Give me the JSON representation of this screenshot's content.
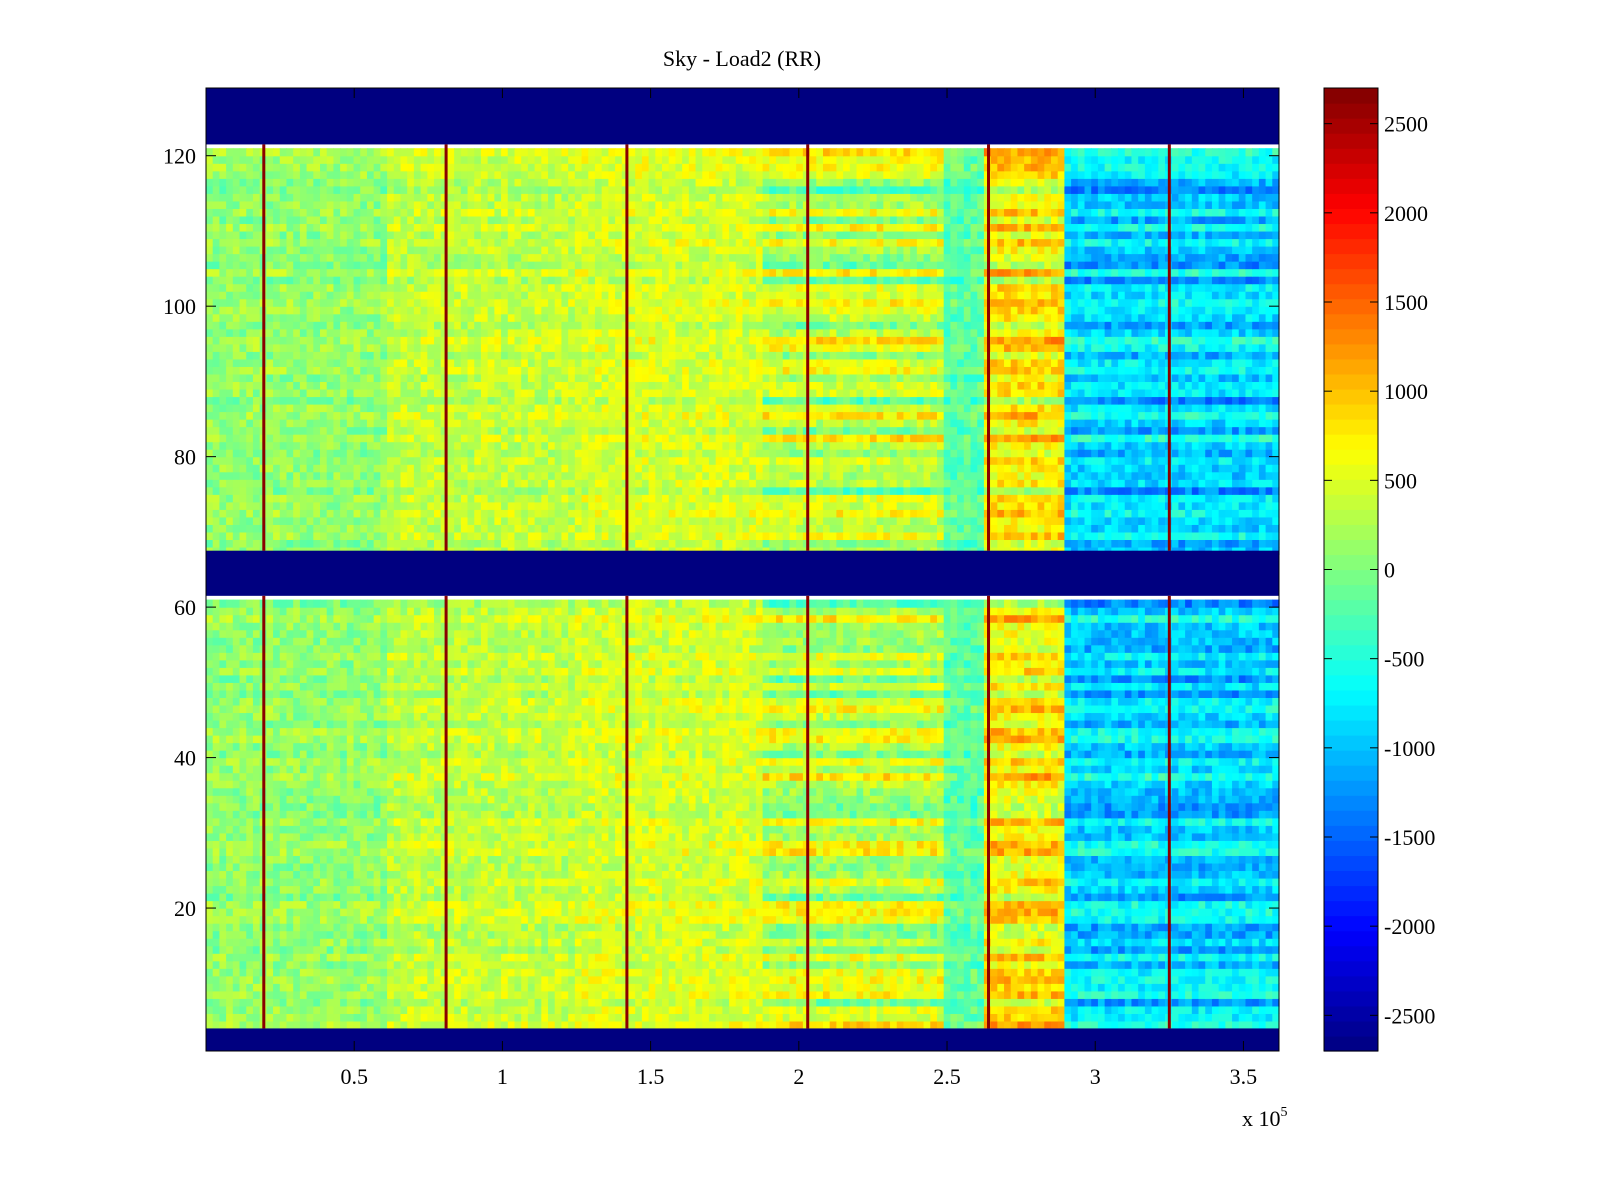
{
  "chart_data": {
    "type": "heatmap",
    "title": "Sky - Load2 (RR)",
    "xlabel": "",
    "ylabel": "",
    "x_multiplier_label": "x 10",
    "x_multiplier_exp": "5",
    "xlim": [
      0,
      3.62
    ],
    "ylim": [
      1,
      129
    ],
    "x_ticks": [
      0.5,
      1,
      1.5,
      2,
      2.5,
      3,
      3.5
    ],
    "x_tick_labels": [
      "0.5",
      "1",
      "1.5",
      "2",
      "2.5",
      "3",
      "3.5"
    ],
    "y_ticks": [
      20,
      40,
      60,
      80,
      100,
      120
    ],
    "y_tick_labels": [
      "20",
      "40",
      "60",
      "80",
      "100",
      "120"
    ],
    "colormap": "jet",
    "clim": [
      -2700,
      2700
    ],
    "colorbar_ticks": [
      2500,
      2000,
      1500,
      1000,
      500,
      0,
      -500,
      -1000,
      -1500,
      -2000,
      -2500
    ],
    "colorbar_tick_labels": [
      "2500",
      "2000",
      "1500",
      "1000",
      "500",
      "0",
      "-500",
      "-1000",
      "-1500",
      "-2000",
      "-2500"
    ],
    "masked_value": -2700,
    "masked_row_bands": [
      [
        1,
        4
      ],
      [
        61.5,
        67.5
      ],
      [
        121.5,
        129
      ]
    ],
    "spike_columns_x": [
      0.195,
      0.81,
      1.42,
      2.03,
      2.64,
      3.25
    ],
    "x_segments": [
      {
        "x0": 0.0,
        "x1": 0.6,
        "base": 100
      },
      {
        "x0": 0.6,
        "x1": 1.25,
        "base": 350
      },
      {
        "x0": 1.25,
        "x1": 1.88,
        "base": 450
      },
      {
        "x0": 1.88,
        "x1": 2.5,
        "base": 300
      },
      {
        "x0": 2.5,
        "x1": 2.63,
        "base": -200
      },
      {
        "x0": 2.63,
        "x1": 2.9,
        "base": 700
      },
      {
        "x0": 2.9,
        "x1": 3.62,
        "base": -900
      }
    ]
  }
}
